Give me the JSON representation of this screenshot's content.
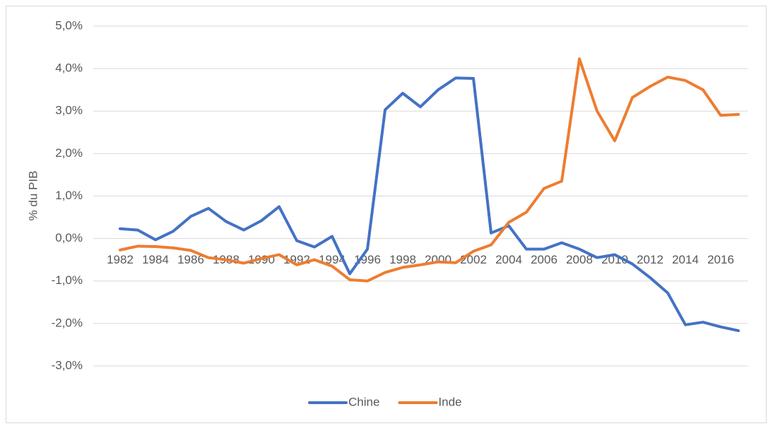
{
  "chart_data": {
    "type": "line",
    "y_label": "% du PIB",
    "categories": [
      1982,
      null,
      1984,
      null,
      1986,
      null,
      1988,
      null,
      1990,
      null,
      1992,
      null,
      1994,
      null,
      1996,
      null,
      1998,
      null,
      2000,
      null,
      2002,
      null,
      2004,
      null,
      2006,
      null,
      2008,
      null,
      2010,
      null,
      2012,
      null,
      2014,
      null,
      2016,
      null
    ],
    "series": [
      {
        "name": "Chine",
        "color": "#4472c4",
        "values": [
          0.23,
          0.2,
          -0.03,
          0.17,
          0.52,
          0.71,
          0.4,
          0.2,
          0.42,
          0.75,
          -0.05,
          -0.2,
          0.05,
          -0.83,
          -0.25,
          3.03,
          3.42,
          3.1,
          3.5,
          3.78,
          3.77,
          0.13,
          0.3,
          -0.25,
          -0.25,
          -0.1,
          -0.25,
          -0.45,
          -0.38,
          -0.6,
          -0.92,
          -1.28,
          -2.03,
          -1.97,
          -2.08,
          -2.17
        ]
      },
      {
        "name": "Inde",
        "color": "#ed7d31",
        "values": [
          -0.27,
          -0.18,
          -0.19,
          -0.22,
          -0.28,
          -0.45,
          -0.5,
          -0.58,
          -0.47,
          -0.38,
          -0.62,
          -0.5,
          -0.65,
          -0.97,
          -1.0,
          -0.8,
          -0.68,
          -0.62,
          -0.55,
          -0.57,
          -0.3,
          -0.15,
          0.38,
          0.62,
          1.18,
          1.35,
          4.23,
          3.0,
          2.3,
          3.32,
          3.58,
          3.8,
          3.72,
          3.5,
          2.9,
          2.92
        ]
      }
    ],
    "ylim": [
      -3,
      5
    ],
    "yticks": [
      {
        "value": -3,
        "label": "-3,0%"
      },
      {
        "value": -2,
        "label": "-2,0%"
      },
      {
        "value": -1,
        "label": "-1,0%"
      },
      {
        "value": 0,
        "label": "0,0%"
      },
      {
        "value": 1,
        "label": "1,0%"
      },
      {
        "value": 2,
        "label": "2,0%"
      },
      {
        "value": 3,
        "label": "3,0%"
      },
      {
        "value": 4,
        "label": "4,0%"
      },
      {
        "value": 5,
        "label": "5,0%"
      }
    ],
    "grid": true,
    "legend": "bottom"
  }
}
